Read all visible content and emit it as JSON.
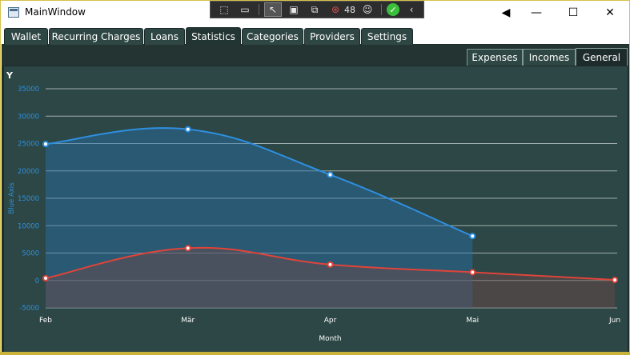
{
  "window": {
    "title": "MainWindow"
  },
  "debug_toolbar": {
    "frame_count": "48"
  },
  "main_tabs": [
    {
      "label": "Wallet"
    },
    {
      "label": "Recurring Charges"
    },
    {
      "label": "Loans"
    },
    {
      "label": "Statistics"
    },
    {
      "label": "Categories"
    },
    {
      "label": "Providers"
    },
    {
      "label": "Settings"
    }
  ],
  "sub_tabs": [
    {
      "label": "Expenses"
    },
    {
      "label": "Incomes"
    },
    {
      "label": "General"
    }
  ],
  "chart_data": {
    "type": "line",
    "y_axis_name": "Y",
    "xlabel": "Month",
    "ylabel": "Blue Axis",
    "categories": [
      "Feb",
      "Mär",
      "Apr",
      "Mai",
      "Jun"
    ],
    "ylim": [
      -5000,
      35000
    ],
    "yticks": [
      35000,
      30000,
      25000,
      20000,
      15000,
      10000,
      5000,
      0,
      -5000
    ],
    "grid": true,
    "series": [
      {
        "color": "#2e8fe0",
        "values": [
          24900,
          27600,
          19300,
          8100,
          null
        ]
      },
      {
        "color": "#e0443a",
        "values": [
          400,
          5900,
          2900,
          1500,
          100
        ]
      }
    ]
  },
  "colors": {
    "accent_tab": "#2f4744",
    "chart_bg": "#2c4745",
    "blue_series": "#2e8fe0",
    "red_series": "#e0443a"
  }
}
